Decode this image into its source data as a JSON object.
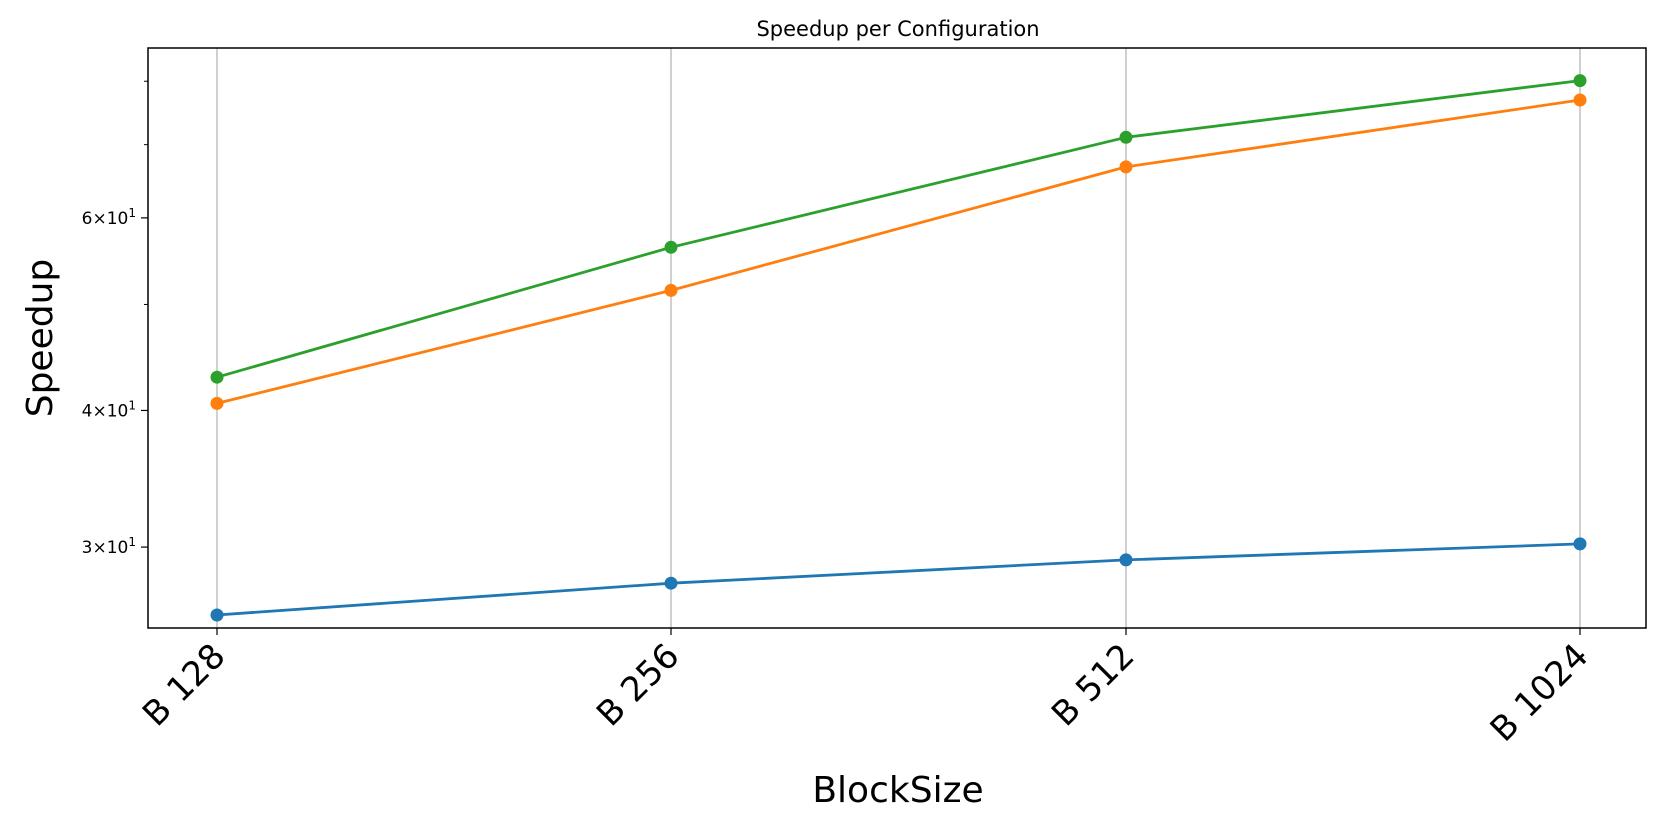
{
  "chart_data": {
    "type": "line",
    "title": "Speedup per Configuration",
    "xlabel": "BlockSize",
    "ylabel": "Speedup",
    "categories": [
      "B 128",
      "B 256",
      "B 512",
      "B 1024"
    ],
    "yscale": "log",
    "ylim": [
      25.3,
      85.8
    ],
    "yticks": [
      {
        "value": 30,
        "label_base": "3",
        "label_exp": "1"
      },
      {
        "value": 40,
        "label_base": "4",
        "label_exp": "1"
      },
      {
        "value": 60,
        "label_base": "6",
        "label_exp": "1"
      }
    ],
    "grid": "x",
    "series": [
      {
        "color": "#1f77b4",
        "values": [
          26.0,
          27.8,
          29.2,
          30.2
        ]
      },
      {
        "color": "#ff7f0e",
        "values": [
          40.6,
          51.5,
          66.8,
          76.9
        ]
      },
      {
        "color": "#2ca02c",
        "values": [
          42.9,
          56.4,
          71.1,
          80.1
        ]
      }
    ]
  }
}
